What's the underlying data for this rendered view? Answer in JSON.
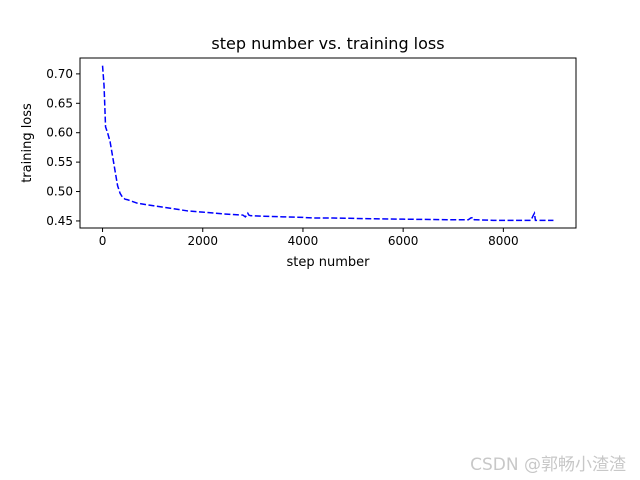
{
  "chart_data": {
    "type": "line",
    "title": "step number vs. training loss",
    "xlabel": "step number",
    "ylabel": "training loss",
    "xlim": [
      -450,
      9450
    ],
    "ylim": [
      0.438,
      0.727
    ],
    "xticks": [
      0,
      2000,
      4000,
      6000,
      8000
    ],
    "xtick_labels": [
      "0",
      "2000",
      "4000",
      "6000",
      "8000"
    ],
    "yticks": [
      0.45,
      0.5,
      0.55,
      0.6,
      0.65,
      0.7
    ],
    "ytick_labels": [
      "0.45",
      "0.50",
      "0.55",
      "0.60",
      "0.65",
      "0.70"
    ],
    "grid": false,
    "line_style": "dashed",
    "color": "#0000ff",
    "series": [
      {
        "x": [
          0,
          30,
          60,
          100,
          150,
          200,
          250,
          300,
          350,
          400,
          450,
          500,
          700,
          1000,
          1400,
          1700,
          2000,
          2400,
          2800,
          2850,
          2880,
          2900,
          2920,
          2950,
          3200,
          3600,
          4000,
          4200,
          4600,
          5200,
          6000,
          7000,
          7300,
          7350,
          7400,
          7420,
          7450,
          7800,
          8200,
          8550,
          8600,
          8620,
          8640,
          8700,
          9000
        ],
        "y": [
          0.714,
          0.68,
          0.61,
          0.6,
          0.585,
          0.56,
          0.535,
          0.51,
          0.497,
          0.49,
          0.487,
          0.486,
          0.48,
          0.476,
          0.471,
          0.467,
          0.465,
          0.462,
          0.46,
          0.457,
          0.46,
          0.463,
          0.46,
          0.459,
          0.458,
          0.457,
          0.456,
          0.455,
          0.455,
          0.454,
          0.453,
          0.452,
          0.452,
          0.455,
          0.456,
          0.452,
          0.452,
          0.451,
          0.451,
          0.451,
          0.46,
          0.463,
          0.451,
          0.451,
          0.451
        ]
      }
    ]
  },
  "watermark": "CSDN @郭畅小渣渣"
}
